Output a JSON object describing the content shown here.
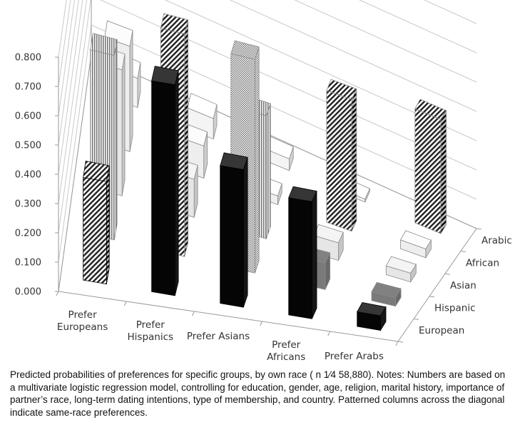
{
  "caption": "Predicted probabilities of preferences for specific groups, by own race ( n 1⁄4 58,880). Notes: Numbers are based on a multivariate logistic regression model, controlling for education, gender, age, religion, marital history, importance of partner’s race, long-term dating intentions, type of membership, and country. Patterned columns across the diagonal indicate same-race preferences.",
  "chart_data": {
    "type": "bar",
    "subtype": "3d-column",
    "title": "",
    "xlabel": "",
    "ylabel": "",
    "ylim": [
      0,
      0.8
    ],
    "yticks": [
      "0.800",
      "0.700",
      "0.600",
      "0.500",
      "0.400",
      "0.300",
      "0.200",
      "0.100",
      "0.000"
    ],
    "grid": true,
    "categories": [
      {
        "line1": "Prefer",
        "line2": "Europeans"
      },
      {
        "line1": "Prefer",
        "line2": "Hispanics"
      },
      {
        "line1": "Prefer Asians",
        "line2": ""
      },
      {
        "line1": "Prefer",
        "line2": "Africans"
      },
      {
        "line1": "Prefer Arabs",
        "line2": ""
      }
    ],
    "series": [
      {
        "name": "European",
        "fill": "#050505",
        "values": [
          0.35,
          0.72,
          0.47,
          0.4,
          0.05
        ]
      },
      {
        "name": "Hispanic",
        "fill": "#7a7a7a",
        "values": [
          0.63,
          0.76,
          0.73,
          0.09,
          0.03
        ]
      },
      {
        "name": "Asian",
        "fill": "#e6e6e6",
        "values": [
          0.43,
          0.13,
          0.42,
          0.06,
          0.03
        ]
      },
      {
        "name": "African",
        "fill": "#eeeeee",
        "values": [
          0.36,
          0.11,
          0.03,
          0.45,
          0.03
        ]
      },
      {
        "name": "Arabic",
        "fill": "#f4f4f4",
        "values": [
          0.1,
          0.07,
          0.04,
          0.01,
          0.39
        ]
      }
    ]
  }
}
